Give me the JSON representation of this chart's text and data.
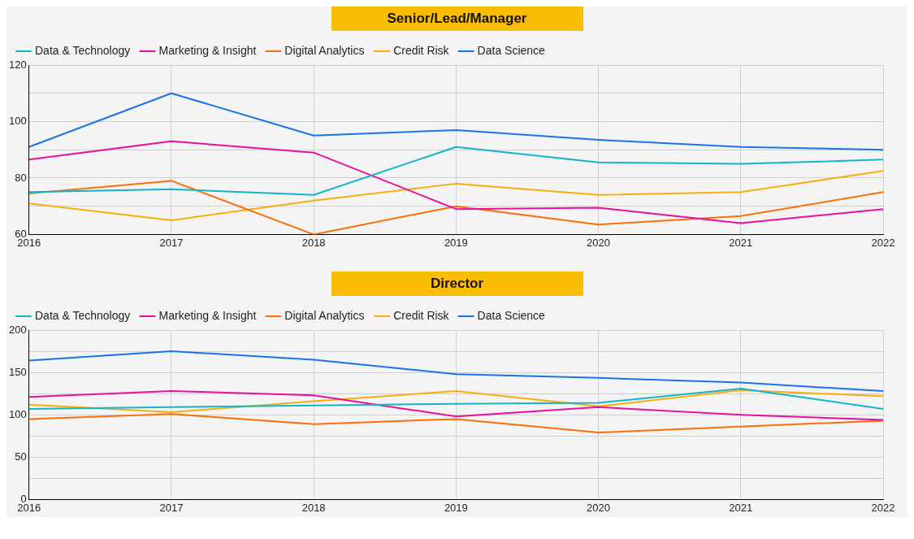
{
  "chart_data": [
    {
      "type": "line",
      "title": "Senior/Lead/Manager",
      "x": [
        2016,
        2017,
        2018,
        2019,
        2020,
        2021,
        2022
      ],
      "xlim": [
        2016,
        2022
      ],
      "xticks": [
        2016,
        2017,
        2018,
        2019,
        2020,
        2021,
        2022
      ],
      "ylim": [
        60,
        120
      ],
      "yticks": [
        60,
        {
          "value": 70,
          "label": null
        },
        80,
        {
          "value": 90,
          "label": null
        },
        100,
        {
          "value": 110,
          "label": null
        },
        120
      ],
      "grid": true,
      "legend": "top left",
      "series": [
        {
          "name": "Data & Technology",
          "color": "#12b5cb",
          "values": [
            75,
            76,
            74,
            91,
            85.5,
            85,
            86.5
          ]
        },
        {
          "name": "Marketing & Insight",
          "color": "#e8119b",
          "values": [
            86.5,
            93,
            89,
            69,
            69.5,
            64,
            69
          ]
        },
        {
          "name": "Digital Analytics",
          "color": "#fa6f0a",
          "values": [
            74.5,
            79,
            60,
            70,
            63.5,
            66.5,
            75
          ]
        },
        {
          "name": "Credit Risk",
          "color": "#fbab0e",
          "values": [
            71,
            65,
            72,
            78,
            74,
            75,
            82.5
          ]
        },
        {
          "name": "Data Science",
          "color": "#1a73e8",
          "values": [
            91,
            110,
            95,
            97,
            93.5,
            91,
            90
          ]
        }
      ]
    },
    {
      "type": "line",
      "title": "Director",
      "x": [
        2016,
        2017,
        2018,
        2019,
        2020,
        2021,
        2022
      ],
      "xlim": [
        2016,
        2022
      ],
      "xticks": [
        2016,
        2017,
        2018,
        2019,
        2020,
        2021,
        2022
      ],
      "ylim": [
        0,
        200
      ],
      "yticks": [
        0,
        {
          "value": 25,
          "label": null
        },
        50,
        {
          "value": 75,
          "label": null
        },
        100,
        {
          "value": 125,
          "label": null
        },
        150,
        {
          "value": 175,
          "label": null
        },
        200
      ],
      "grid": true,
      "legend": "top left",
      "series": [
        {
          "name": "Data & Technology",
          "color": "#12b5cb",
          "values": [
            107,
            109,
            111,
            113,
            114,
            131,
            107
          ]
        },
        {
          "name": "Marketing & Insight",
          "color": "#e8119b",
          "values": [
            121,
            128,
            123,
            98,
            109,
            100,
            94
          ]
        },
        {
          "name": "Digital Analytics",
          "color": "#fa6f0a",
          "values": [
            95,
            101,
            89,
            95,
            79,
            86,
            93
          ]
        },
        {
          "name": "Credit Risk",
          "color": "#fbab0e",
          "values": [
            112,
            103,
            116,
            128,
            110,
            129,
            122
          ]
        },
        {
          "name": "Data Science",
          "color": "#1a73e8",
          "values": [
            164,
            175,
            165,
            148,
            143.5,
            138,
            128
          ]
        }
      ]
    }
  ]
}
